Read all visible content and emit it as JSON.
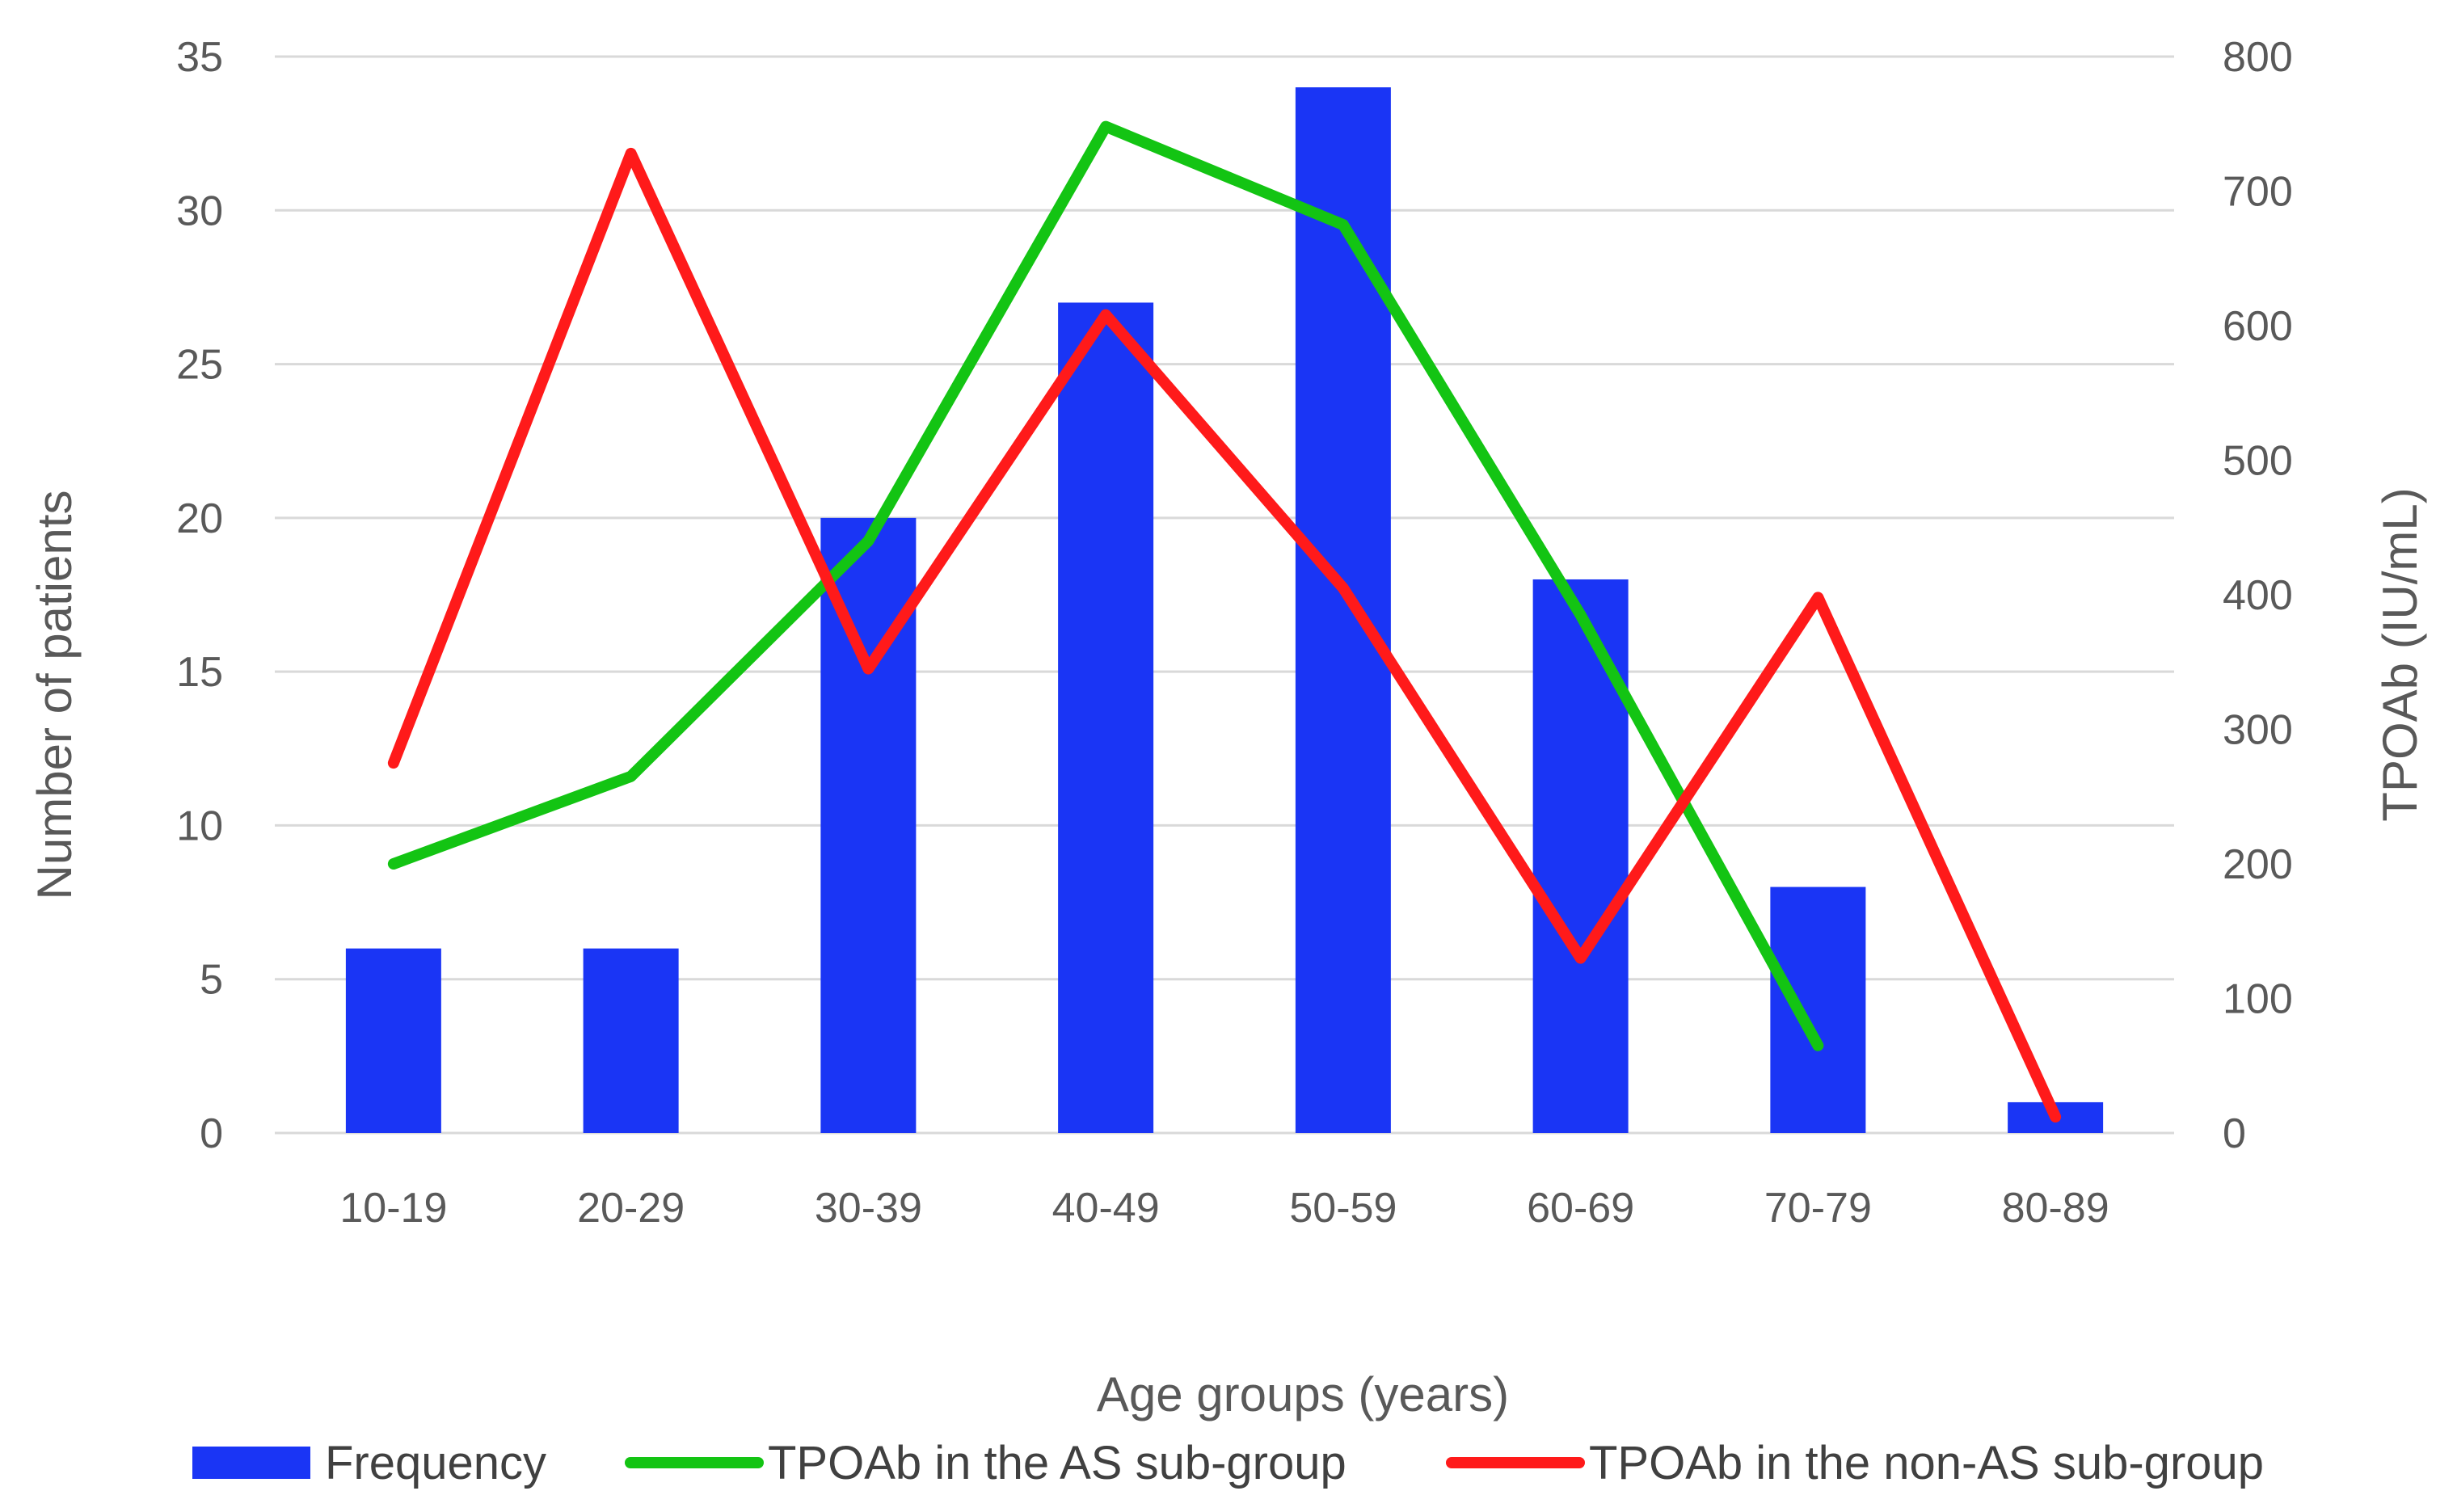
{
  "chart_data": {
    "type": "bar+line",
    "title": "",
    "categories": [
      "10-19",
      "20-29",
      "30-39",
      "40-49",
      "50-59",
      "60-69",
      "70-79",
      "80-89"
    ],
    "xlabel": "Age groups (years)",
    "ylabel_left": "Number of patients",
    "ylabel_right": "TPOAb (IU/mL)",
    "ylim_left": [
      0,
      35
    ],
    "yticks_left": [
      0,
      5,
      10,
      15,
      20,
      25,
      30,
      35
    ],
    "ylim_right": [
      0,
      800
    ],
    "yticks_right": [
      0,
      100,
      200,
      300,
      400,
      500,
      600,
      700,
      800
    ],
    "grid": true,
    "legend_position": "bottom",
    "series": [
      {
        "name": "Frequency",
        "type": "bar",
        "axis": "left",
        "color": "#1a35f5",
        "values": [
          6,
          6,
          20,
          27,
          34,
          18,
          8,
          1
        ]
      },
      {
        "name": "TPOAb in the AS sub-group",
        "type": "line",
        "axis": "right",
        "color": "#13c413",
        "values": [
          200,
          265,
          440,
          748,
          675,
          385,
          65,
          null
        ]
      },
      {
        "name": "TPOAb in the non-AS sub-group",
        "type": "line",
        "axis": "right",
        "color": "#ff1a1a",
        "values": [
          275,
          728,
          345,
          608,
          405,
          130,
          398,
          12
        ]
      }
    ]
  }
}
